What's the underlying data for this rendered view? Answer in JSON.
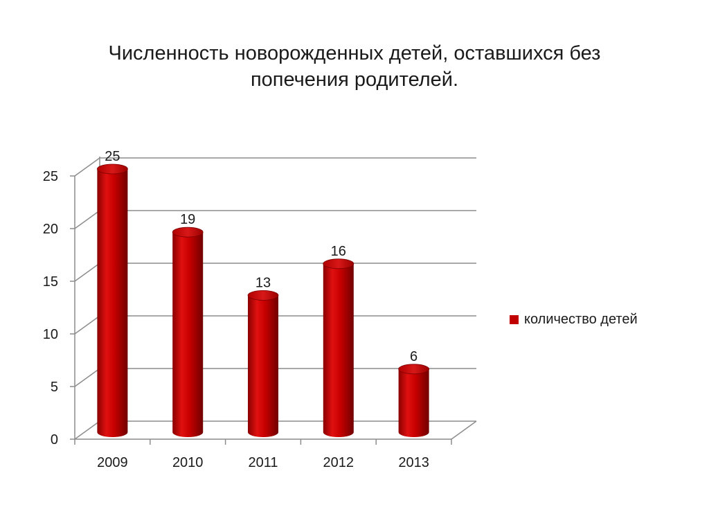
{
  "title_lines": [
    "Численность новорожденных детей, оставшихся без",
    "попечения родителей."
  ],
  "chart_data": {
    "type": "bar",
    "categories": [
      "2009",
      "2010",
      "2011",
      "2012",
      "2013"
    ],
    "series": [
      {
        "name": "количество детей",
        "values": [
          25,
          19,
          13,
          16,
          6
        ]
      }
    ],
    "y_ticks": [
      0,
      5,
      10,
      15,
      20,
      25
    ],
    "ylim": [
      0,
      25
    ],
    "grid": true,
    "legend_position": "right",
    "bar_color": "#c00000"
  }
}
